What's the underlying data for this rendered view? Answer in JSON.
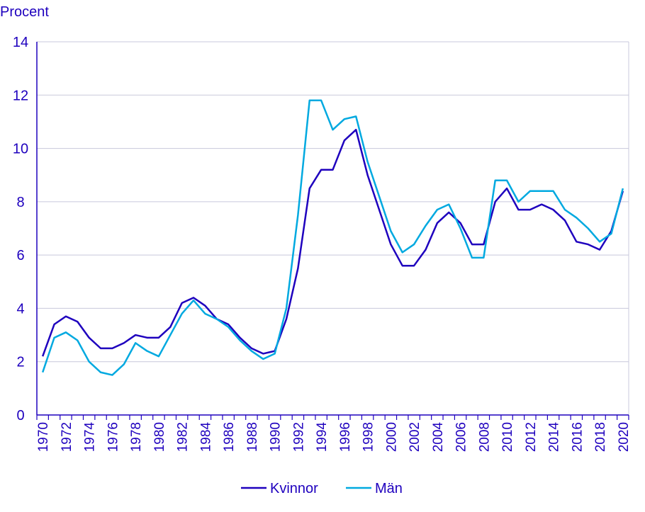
{
  "chart_data": {
    "type": "line",
    "ylabel": "Procent",
    "ylim": [
      0,
      14
    ],
    "yticks": [
      0,
      2,
      4,
      6,
      8,
      10,
      12,
      14
    ],
    "x": [
      1970,
      1971,
      1972,
      1973,
      1974,
      1975,
      1976,
      1977,
      1978,
      1979,
      1980,
      1981,
      1982,
      1983,
      1984,
      1985,
      1986,
      1987,
      1988,
      1989,
      1990,
      1991,
      1992,
      1993,
      1994,
      1995,
      1996,
      1997,
      1998,
      1999,
      2000,
      2001,
      2002,
      2003,
      2004,
      2005,
      2006,
      2007,
      2008,
      2009,
      2010,
      2011,
      2012,
      2013,
      2014,
      2015,
      2016,
      2017,
      2018,
      2019,
      2020
    ],
    "xtick_labels": [
      "1970",
      "1972",
      "1974",
      "1976",
      "1978",
      "1980",
      "1982",
      "1984",
      "1986",
      "1988",
      "1990",
      "1992",
      "1994",
      "1996",
      "1998",
      "2000",
      "2002",
      "2004",
      "2006",
      "2008",
      "2010",
      "2012",
      "2014",
      "2016",
      "2018",
      "2020"
    ],
    "grid": true,
    "legend_position": "bottom-center",
    "series": [
      {
        "name": "Kvinnor",
        "color": "#1e00be",
        "values": [
          2.2,
          3.4,
          3.7,
          3.5,
          2.9,
          2.5,
          2.5,
          2.7,
          3.0,
          2.9,
          2.9,
          3.3,
          4.2,
          4.4,
          4.1,
          3.6,
          3.4,
          2.9,
          2.5,
          2.3,
          2.4,
          3.6,
          5.5,
          8.5,
          9.2,
          9.2,
          10.3,
          10.7,
          9.0,
          7.7,
          6.4,
          5.6,
          5.6,
          6.2,
          7.2,
          7.6,
          7.2,
          6.4,
          6.4,
          8.0,
          8.5,
          7.7,
          7.7,
          7.9,
          7.7,
          7.3,
          6.5,
          6.4,
          6.2,
          6.9,
          8.4
        ]
      },
      {
        "name": "Män",
        "color": "#00a9e0",
        "values": [
          1.6,
          2.9,
          3.1,
          2.8,
          2.0,
          1.6,
          1.5,
          1.9,
          2.7,
          2.4,
          2.2,
          3.0,
          3.8,
          4.3,
          3.8,
          3.6,
          3.3,
          2.8,
          2.4,
          2.1,
          2.3,
          4.0,
          7.5,
          11.8,
          11.8,
          10.7,
          11.1,
          11.2,
          9.5,
          8.2,
          6.9,
          6.1,
          6.4,
          7.1,
          7.7,
          7.9,
          7.0,
          5.9,
          5.9,
          8.8,
          8.8,
          8.0,
          8.4,
          8.4,
          8.4,
          7.7,
          7.4,
          7.0,
          6.5,
          6.8,
          8.5
        ]
      }
    ]
  }
}
